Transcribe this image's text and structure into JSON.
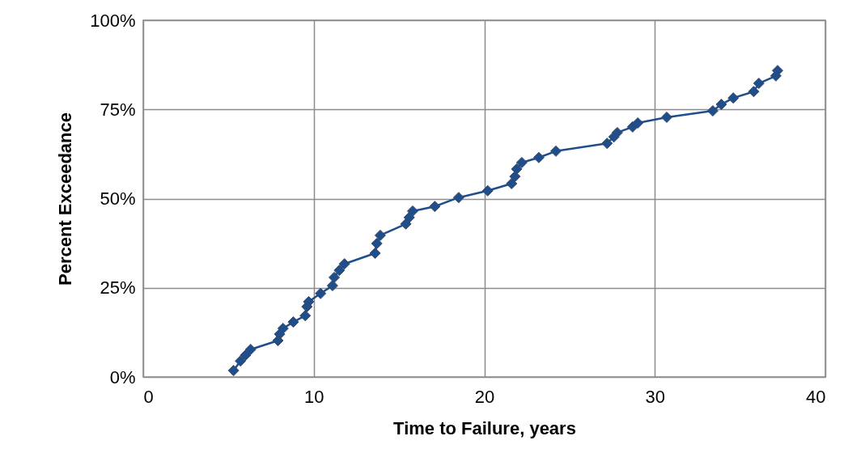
{
  "chart_data": {
    "type": "line",
    "xlabel": "Time to Failure, years",
    "ylabel": "Percent Exceedance",
    "x": [
      5.3,
      5.7,
      6.0,
      6.3,
      7.9,
      8.0,
      8.2,
      8.8,
      9.5,
      9.6,
      9.7,
      10.4,
      11.1,
      11.2,
      11.5,
      11.8,
      13.6,
      13.7,
      13.9,
      15.4,
      15.6,
      15.8,
      17.1,
      18.5,
      20.2,
      21.6,
      21.8,
      21.9,
      22.2,
      23.2,
      24.2,
      27.2,
      27.6,
      27.8,
      28.7,
      29.0,
      30.7,
      33.4,
      33.9,
      34.6,
      35.8,
      36.1,
      37.1,
      37.2
    ],
    "series": [
      {
        "color": "#1f4e8c",
        "values": [
          1.8,
          4.5,
          6.1,
          7.7,
          10.2,
          12.0,
          13.6,
          15.4,
          17.2,
          19.7,
          21.1,
          23.4,
          25.6,
          27.9,
          29.9,
          31.7,
          34.7,
          37.4,
          39.7,
          42.9,
          44.7,
          46.5,
          47.8,
          50.3,
          52.2,
          54.2,
          56.2,
          58.3,
          60.1,
          61.5,
          63.3,
          65.5,
          67.3,
          68.5,
          70.1,
          71.2,
          72.8,
          74.6,
          76.4,
          78.2,
          80.0,
          82.3,
          84.4,
          85.9
        ]
      }
    ],
    "xlim": [
      0,
      40
    ],
    "xticks": [
      0,
      10,
      20,
      30,
      40
    ],
    "ylim": [
      0,
      100
    ],
    "yticks": [
      {
        "value": 0,
        "label": "0%"
      },
      {
        "value": 25,
        "label": "25%"
      },
      {
        "value": 50,
        "label": "50%"
      },
      {
        "value": 75,
        "label": "75%"
      },
      {
        "value": 100,
        "label": "100%"
      }
    ],
    "grid": true,
    "marker": "diamond",
    "line_style": "solid"
  }
}
